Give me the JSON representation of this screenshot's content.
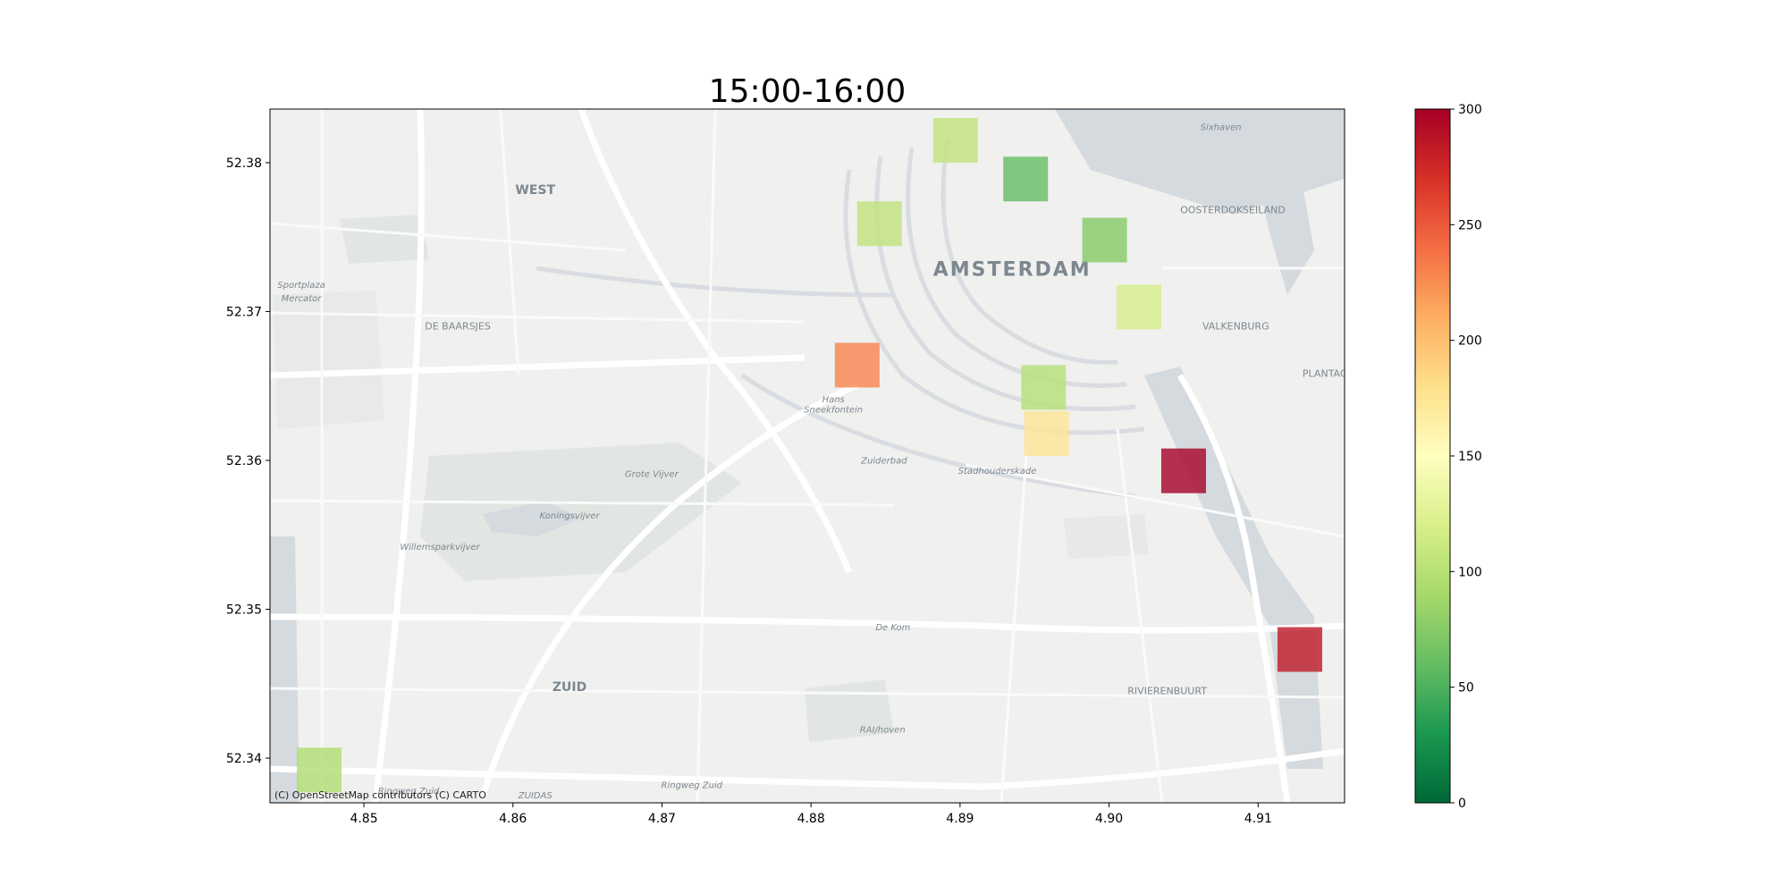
{
  "chart_data": {
    "type": "heatmap",
    "title": "15:00-16:00",
    "attribution": "(C) OpenStreetMap contributors (C) CARTO",
    "xlabel": "",
    "ylabel": "",
    "xlim": [
      4.8437,
      4.9158
    ],
    "ylim": [
      52.337,
      52.3836
    ],
    "x_ticks": [
      "4.85",
      "4.86",
      "4.87",
      "4.88",
      "4.89",
      "4.90",
      "4.91"
    ],
    "x_tick_values": [
      4.85,
      4.86,
      4.87,
      4.88,
      4.89,
      4.9,
      4.91
    ],
    "y_ticks": [
      "52.34",
      "52.35",
      "52.36",
      "52.37",
      "52.38"
    ],
    "y_tick_values": [
      52.34,
      52.35,
      52.36,
      52.37,
      52.38
    ],
    "colorbar": {
      "colormap": "RdYlGn_r",
      "range": [
        0,
        300
      ],
      "ticks": [
        "0",
        "50",
        "100",
        "150",
        "200",
        "250",
        "300"
      ],
      "tick_values": [
        0,
        50,
        100,
        150,
        200,
        250,
        300
      ]
    },
    "cell_size_deg": [
      0.003,
      0.003
    ],
    "cells": [
      {
        "lon": 4.8897,
        "lat": 52.3815,
        "value": 105
      },
      {
        "lon": 4.8944,
        "lat": 52.3789,
        "value": 60
      },
      {
        "lon": 4.8846,
        "lat": 52.3759,
        "value": 105
      },
      {
        "lon": 4.8997,
        "lat": 52.3748,
        "value": 75
      },
      {
        "lon": 4.902,
        "lat": 52.3703,
        "value": 118
      },
      {
        "lon": 4.8831,
        "lat": 52.3664,
        "value": 230
      },
      {
        "lon": 4.8956,
        "lat": 52.3649,
        "value": 100
      },
      {
        "lon": 4.8958,
        "lat": 52.3618,
        "value": 175
      },
      {
        "lon": 4.905,
        "lat": 52.3593,
        "value": 300
      },
      {
        "lon": 4.9128,
        "lat": 52.3473,
        "value": 285
      },
      {
        "lon": 4.847,
        "lat": 52.3392,
        "value": 95
      }
    ]
  },
  "map_labels": [
    {
      "text": "AMSTERDAM",
      "lon": 4.8935,
      "lat": 52.3724,
      "size": "large"
    },
    {
      "text": "WEST",
      "lon": 4.8615,
      "lat": 52.3779,
      "size": "medium"
    },
    {
      "text": "DE BAARSJES",
      "lon": 4.8563,
      "lat": 52.3688,
      "size": "small"
    },
    {
      "text": "OOSTERDOKSEILAND",
      "lon": 4.9083,
      "lat": 52.3766,
      "size": "small"
    },
    {
      "text": "VALKENBURG",
      "lon": 4.9085,
      "lat": 52.3688,
      "size": "small"
    },
    {
      "text": "PLANTAGE",
      "lon": 4.9147,
      "lat": 52.3656,
      "size": "small"
    },
    {
      "text": "ZUID",
      "lon": 4.8638,
      "lat": 52.3445,
      "size": "medium"
    },
    {
      "text": "RIVIERENBUURT",
      "lon": 4.9039,
      "lat": 52.3443,
      "size": "small"
    },
    {
      "text": "Sportplaza",
      "lon": 4.8458,
      "lat": 52.3716,
      "size": "tiny"
    },
    {
      "text": "Mercator",
      "lon": 4.8458,
      "lat": 52.3707,
      "size": "tiny"
    },
    {
      "text": "Grote Vijver",
      "lon": 4.8693,
      "lat": 52.3589,
      "size": "tiny"
    },
    {
      "text": "Koningsvijver",
      "lon": 4.8638,
      "lat": 52.3561,
      "size": "tiny"
    },
    {
      "text": "Willemsparkvijver",
      "lon": 4.8551,
      "lat": 52.354,
      "size": "tiny"
    },
    {
      "text": "Zuiderbad",
      "lon": 4.8849,
      "lat": 52.3598,
      "size": "tiny"
    },
    {
      "text": "Stadhouderskade",
      "lon": 4.8925,
      "lat": 52.3591,
      "size": "tiny"
    },
    {
      "text": "De Kom",
      "lon": 4.8855,
      "lat": 52.3486,
      "size": "tiny"
    },
    {
      "text": "RAI/hoven",
      "lon": 4.8848,
      "lat": 52.3417,
      "size": "tiny"
    },
    {
      "text": "Ringweg Zuid",
      "lon": 4.853,
      "lat": 52.3376,
      "size": "tiny"
    },
    {
      "text": "Ringweg Zuid",
      "lon": 4.872,
      "lat": 52.338,
      "size": "tiny"
    },
    {
      "text": "ZUIDAS",
      "lon": 4.8615,
      "lat": 52.3373,
      "size": "tiny"
    },
    {
      "text": "Hans",
      "lon": 4.8815,
      "lat": 52.3639,
      "size": "tiny"
    },
    {
      "text": "Sneekfontein",
      "lon": 4.8815,
      "lat": 52.3632,
      "size": "tiny"
    },
    {
      "text": "Sixhaven",
      "lon": 4.9075,
      "lat": 52.3822,
      "size": "tiny"
    }
  ]
}
